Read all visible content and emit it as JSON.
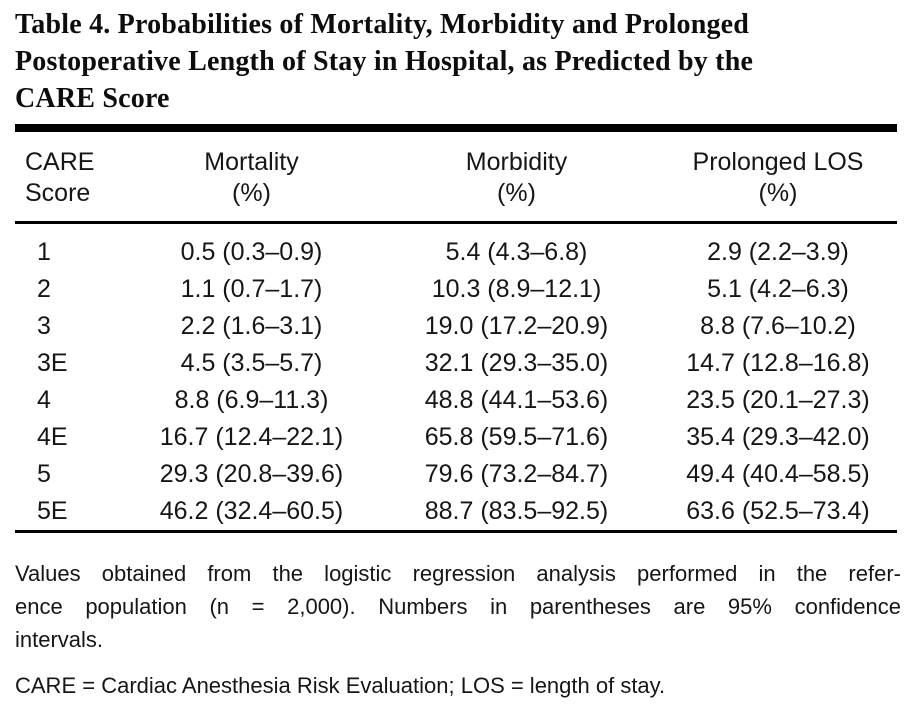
{
  "title_lines": [
    "Table 4. Probabilities of Mortality, Morbidity and Prolonged",
    "Postoperative Length of Stay in Hospital, as Predicted by the",
    "CARE Score"
  ],
  "table": {
    "headers": [
      {
        "line1": "CARE",
        "line2": "Score"
      },
      {
        "line1": "Mortality",
        "line2": "(%)"
      },
      {
        "line1": "Morbidity",
        "line2": "(%)"
      },
      {
        "line1": "Prolonged LOS",
        "line2": "(%)"
      }
    ],
    "rows": [
      {
        "score": "1",
        "mortality": "0.5 (0.3–0.9)",
        "morbidity": "5.4 (4.3–6.8)",
        "los": "2.9 (2.2–3.9)"
      },
      {
        "score": "2",
        "mortality": "1.1 (0.7–1.7)",
        "morbidity": "10.3 (8.9–12.1)",
        "los": "5.1 (4.2–6.3)"
      },
      {
        "score": "3",
        "mortality": "2.2 (1.6–3.1)",
        "morbidity": "19.0 (17.2–20.9)",
        "los": "8.8 (7.6–10.2)"
      },
      {
        "score": "3E",
        "mortality": "4.5 (3.5–5.7)",
        "morbidity": "32.1 (29.3–35.0)",
        "los": "14.7 (12.8–16.8)"
      },
      {
        "score": "4",
        "mortality": "8.8 (6.9–11.3)",
        "morbidity": "48.8 (44.1–53.6)",
        "los": "23.5 (20.1–27.3)"
      },
      {
        "score": "4E",
        "mortality": "16.7 (12.4–22.1)",
        "morbidity": "65.8 (59.5–71.6)",
        "los": "35.4 (29.3–42.0)"
      },
      {
        "score": "5",
        "mortality": "29.3 (20.8–39.6)",
        "morbidity": "79.6 (73.2–84.7)",
        "los": "49.4 (40.4–58.5)"
      },
      {
        "score": "5E",
        "mortality": "46.2 (32.4–60.5)",
        "morbidity": "88.7 (83.5–92.5)",
        "los": "63.6 (52.5–73.4)"
      }
    ]
  },
  "footnotes": {
    "note1_lines": [
      "Values obtained from the logistic regression analysis performed in the refer-",
      "ence population (n = 2,000). Numbers in parentheses are 95% confidence",
      "intervals."
    ],
    "note2": "CARE = Cardiac Anesthesia Risk Evaluation; LOS = length of stay."
  },
  "colors": {
    "background": "#ffffff",
    "text": "#161616",
    "title_text": "#0d0d0d",
    "rule": "#000000"
  }
}
